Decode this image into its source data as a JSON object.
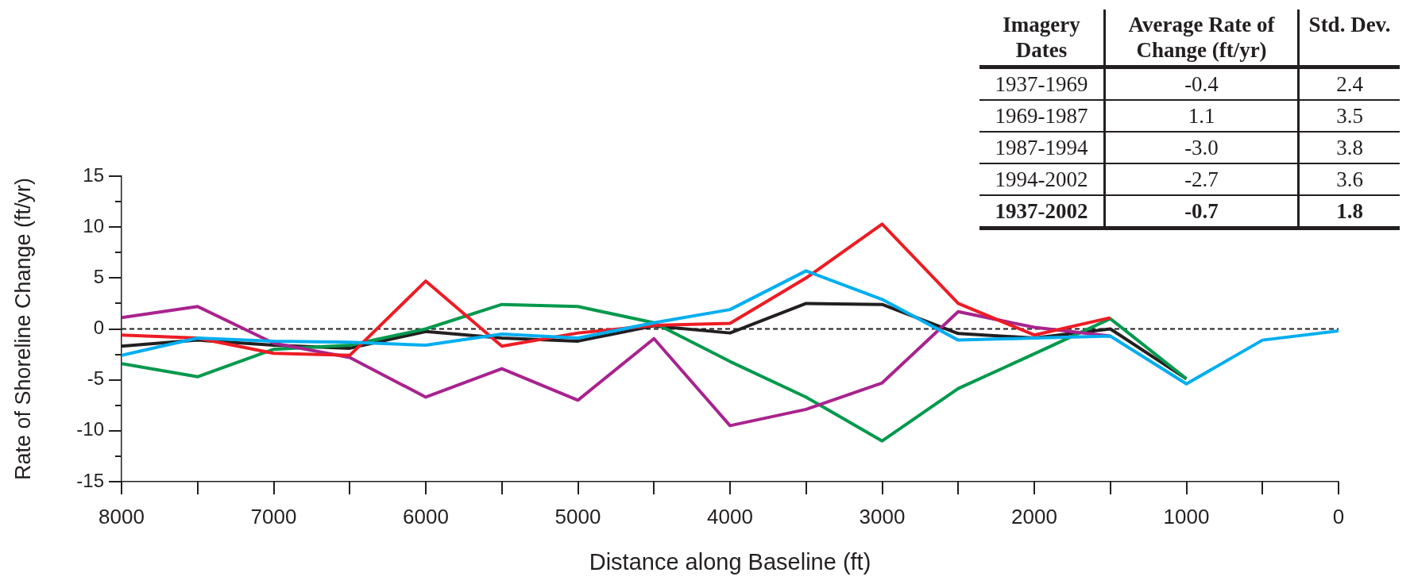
{
  "chart_data": {
    "type": "line",
    "xlabel": "Distance along Baseline (ft)",
    "ylabel": "Rate of Shoreline Change (ft/yr)",
    "x": [
      8000,
      7500,
      7000,
      6500,
      6000,
      5500,
      5000,
      4500,
      4000,
      3500,
      3000,
      2500,
      2000,
      1500,
      1000,
      500,
      0
    ],
    "xlim": [
      8000,
      0
    ],
    "xticks": [
      8000,
      {
        "value": 7500,
        "label": null
      },
      7000,
      {
        "value": 6500,
        "label": null
      },
      6000,
      {
        "value": 5500,
        "label": null
      },
      5000,
      {
        "value": 4500,
        "label": null
      },
      4000,
      {
        "value": 3500,
        "label": null
      },
      3000,
      {
        "value": 2500,
        "label": null
      },
      2000,
      {
        "value": 1500,
        "label": null
      },
      1000,
      {
        "value": 500,
        "label": null
      },
      0
    ],
    "ylim": [
      -15,
      15
    ],
    "yticks": [
      -15,
      {
        "value": -12.5,
        "label": null
      },
      -10,
      {
        "value": -7.5,
        "label": null
      },
      -5,
      {
        "value": -2.5,
        "label": null
      },
      0,
      {
        "value": 2.5,
        "label": null
      },
      5,
      {
        "value": 7.5,
        "label": null
      },
      10,
      {
        "value": 12.5,
        "label": null
      },
      15
    ],
    "grid": false,
    "legend": false,
    "marker": "none",
    "line_style": "solid",
    "series": [
      {
        "color": "#00aeef",
        "values": [
          -2.6,
          -0.9,
          -1.2,
          -1.3,
          -1.6,
          -0.5,
          -0.9,
          0.6,
          1.9,
          5.7,
          2.9,
          -1.1,
          -0.9,
          -0.7,
          -5.4,
          -1.1,
          -0.2
        ]
      },
      {
        "color": "#ed1c24",
        "values": [
          -0.6,
          -0.9,
          -2.4,
          -2.6,
          4.7,
          -1.7,
          -0.4,
          0.35,
          0.55,
          5.0,
          10.3,
          2.5,
          -0.6,
          1.1,
          null,
          null,
          null
        ]
      },
      {
        "color": "#a8238e",
        "values": [
          1.1,
          2.2,
          -1.4,
          -2.8,
          -6.7,
          -3.9,
          -7.0,
          -0.95,
          -9.5,
          -7.9,
          -5.3,
          1.7,
          0.15,
          -0.7,
          null,
          null,
          null
        ]
      },
      {
        "color": "#00994c",
        "values": [
          -3.4,
          -4.7,
          -2.0,
          -1.6,
          0,
          2.4,
          2.2,
          0.6,
          -3.2,
          -6.7,
          -11.0,
          -5.85,
          -2.45,
          1.0,
          -4.9,
          null,
          null
        ]
      },
      {
        "color": "#231f20",
        "values": [
          -1.7,
          -1.1,
          -1.6,
          -1.9,
          -0.25,
          -0.9,
          -1.2,
          0.3,
          -0.4,
          2.5,
          2.4,
          -0.45,
          -0.9,
          0,
          -4.9,
          null,
          null
        ]
      }
    ],
    "ref_lines": [
      {
        "axis": "y",
        "value": 0,
        "color": "#231f20",
        "line_style": "dashed"
      }
    ],
    "annotations": [
      "Imagery Dates",
      "Average Rate of Change (ft/yr)",
      "Std. Dev.",
      "1937-1969",
      "-0.4",
      "2.4",
      "1969-1987",
      "1.1",
      "3.5",
      "1987-1994",
      "-3.0",
      "3.8",
      "1994-2002",
      "-2.7",
      "3.6",
      "1937-2002",
      "-0.7",
      "1.8"
    ]
  }
}
